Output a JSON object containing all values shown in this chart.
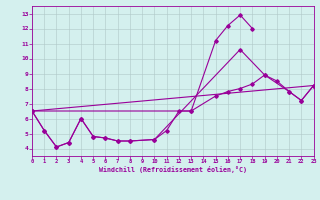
{
  "xlabel": "Windchill (Refroidissement éolien,°C)",
  "bg_color": "#d4f0ee",
  "grid_color": "#b0c8c8",
  "line_color": "#990099",
  "xlim": [
    0,
    23
  ],
  "ylim": [
    3.5,
    13.5
  ],
  "xticks": [
    0,
    1,
    2,
    3,
    4,
    5,
    6,
    7,
    8,
    9,
    10,
    11,
    12,
    13,
    14,
    15,
    16,
    17,
    18,
    19,
    20,
    21,
    22,
    23
  ],
  "yticks": [
    4,
    5,
    6,
    7,
    8,
    9,
    10,
    11,
    12,
    13
  ],
  "line1_x": [
    0,
    1,
    2,
    3,
    4,
    5,
    6,
    7,
    8,
    10,
    11,
    12,
    13,
    15,
    16,
    17,
    18
  ],
  "line1_y": [
    6.5,
    5.2,
    4.1,
    4.4,
    6.0,
    4.8,
    4.7,
    4.5,
    4.5,
    4.6,
    5.2,
    6.5,
    6.5,
    11.2,
    12.2,
    12.9,
    12.0
  ],
  "line2_x": [
    0,
    1,
    2,
    3,
    4,
    5,
    6,
    7,
    8,
    10,
    17,
    19,
    21,
    22,
    23
  ],
  "line2_y": [
    6.5,
    5.2,
    4.1,
    4.4,
    6.0,
    4.8,
    4.7,
    4.5,
    4.5,
    4.6,
    10.6,
    8.9,
    7.8,
    7.2,
    8.2
  ],
  "line3_x": [
    0,
    13,
    15,
    16,
    17,
    18,
    19,
    20,
    21,
    22,
    23
  ],
  "line3_y": [
    6.5,
    6.5,
    7.5,
    7.8,
    8.0,
    8.3,
    8.9,
    8.5,
    7.8,
    7.2,
    8.2
  ],
  "line4_x": [
    0,
    23
  ],
  "line4_y": [
    6.5,
    8.2
  ]
}
